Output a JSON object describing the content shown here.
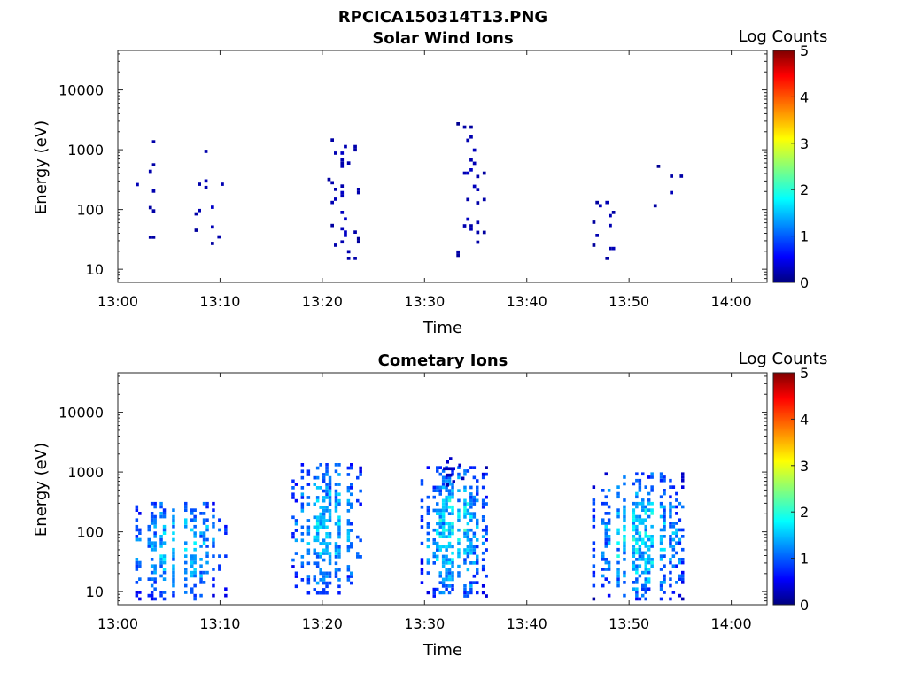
{
  "figure_title": "RPCICA150314T13.PNG",
  "chart_data": [
    {
      "type": "heatmap",
      "title": "Solar Wind Ions",
      "xlabel": "Time",
      "ylabel": "Energy (eV)",
      "x_ticks": [
        "13:00",
        "13:10",
        "13:20",
        "13:30",
        "13:40",
        "13:50",
        "14:00"
      ],
      "x_range_minutes": [
        0,
        63.5
      ],
      "y_ticks": [
        {
          "value": 10,
          "label": "10"
        },
        {
          "value": 100,
          "label": "100"
        },
        {
          "value": 1000,
          "label": "1000"
        },
        {
          "value": 10000,
          "label": "10000"
        }
      ],
      "y_range_log10": [
        0.78,
        4.66
      ],
      "y_scale": "log",
      "colorbar": {
        "label": "Log Counts",
        "range": [
          0,
          5
        ],
        "ticks": [
          "0",
          "1",
          "2",
          "3",
          "4",
          "5"
        ],
        "colormap": "jet"
      },
      "seed": 7,
      "column_width_minutes": 0.32,
      "clusters": [
        {
          "x": [
            1.1,
            3.9
          ],
          "e": [
            1.4,
            3.45
          ],
          "p": 0.05,
          "v": [
            0.05,
            0.35
          ]
        },
        {
          "x": [
            6.0,
            6.7
          ],
          "e": [
            3.05,
            3.45
          ],
          "p": 0.06,
          "v": [
            0.05,
            0.3
          ]
        },
        {
          "x": [
            7.5,
            10.4
          ],
          "e": [
            1.35,
            3.15
          ],
          "p": 0.05,
          "v": [
            0.05,
            0.4
          ]
        },
        {
          "x": [
            18.5,
            18.9
          ],
          "e": [
            3.0,
            3.45
          ],
          "p": 0.1,
          "v": [
            0.05,
            0.3
          ]
        },
        {
          "x": [
            20.5,
            23.5
          ],
          "e": [
            1.1,
            3.15
          ],
          "p": 0.09,
          "v": [
            0.05,
            0.45
          ]
        },
        {
          "x": [
            32.8,
            35.8
          ],
          "e": [
            1.15,
            3.45
          ],
          "p": 0.07,
          "v": [
            0.05,
            0.4
          ]
        },
        {
          "x": [
            46.4,
            48.8
          ],
          "e": [
            1.1,
            2.3
          ],
          "p": 0.08,
          "v": [
            0.05,
            0.4
          ]
        },
        {
          "x": [
            52.4,
            55.3
          ],
          "e": [
            1.1,
            2.8
          ],
          "p": 0.06,
          "v": [
            0.05,
            0.35
          ]
        }
      ]
    },
    {
      "type": "heatmap",
      "title": "Cometary Ions",
      "xlabel": "Time",
      "ylabel": "Energy (eV)",
      "x_ticks": [
        "13:00",
        "13:10",
        "13:20",
        "13:30",
        "13:40",
        "13:50",
        "14:00"
      ],
      "x_range_minutes": [
        0,
        63.5
      ],
      "y_ticks": [
        {
          "value": 10,
          "label": "10"
        },
        {
          "value": 100,
          "label": "100"
        },
        {
          "value": 1000,
          "label": "1000"
        },
        {
          "value": 10000,
          "label": "10000"
        }
      ],
      "y_range_log10": [
        0.78,
        4.66
      ],
      "y_scale": "log",
      "colorbar": {
        "label": "Log Counts",
        "range": [
          0,
          5
        ],
        "ticks": [
          "0",
          "1",
          "2",
          "3",
          "4",
          "5"
        ],
        "colormap": "jet"
      },
      "seed": 19,
      "column_width_minutes": 0.3,
      "clusters": [
        {
          "x": [
            1.1,
            10.5
          ],
          "e": [
            0.85,
            2.5
          ],
          "p": 0.42,
          "v": [
            0.1,
            2.2
          ]
        },
        {
          "x": [
            3.6,
            3.9
          ],
          "e": [
            3.25,
            3.45
          ],
          "p": 0.3,
          "v": [
            0.1,
            0.5
          ]
        },
        {
          "x": [
            17.0,
            23.8
          ],
          "e": [
            0.95,
            3.15
          ],
          "p": 0.45,
          "v": [
            0.1,
            2.2
          ]
        },
        {
          "x": [
            29.6,
            35.9
          ],
          "e": [
            0.9,
            3.1
          ],
          "p": 0.48,
          "v": [
            0.1,
            2.4
          ]
        },
        {
          "x": [
            31.5,
            33.8
          ],
          "e": [
            2.7,
            3.4
          ],
          "p": 0.12,
          "v": [
            0.1,
            0.5
          ]
        },
        {
          "x": [
            46.4,
            55.4
          ],
          "e": [
            0.85,
            2.95
          ],
          "p": 0.45,
          "v": [
            0.1,
            2.3
          ]
        }
      ]
    }
  ]
}
